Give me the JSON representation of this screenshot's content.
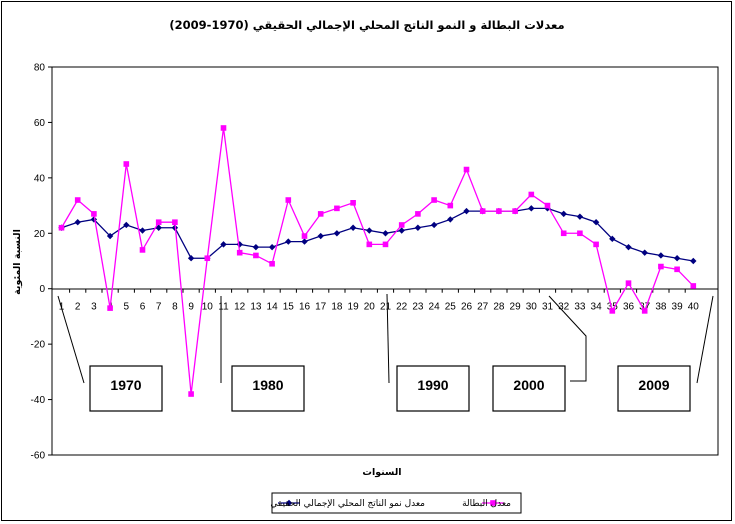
{
  "chart_data": {
    "type": "line",
    "title": "معدلات البطالة و النمو الناتج المحلي الإجمالي الحقيقي (1970-2009)",
    "xlabel": "السنوات",
    "ylabel": "النسبة المئوية",
    "ylim": [
      -60,
      80
    ],
    "yticks": [
      -60,
      -40,
      -20,
      0,
      20,
      40,
      60,
      80
    ],
    "grid": false,
    "legend": "bottom",
    "categories": [
      "1",
      "2",
      "3",
      "4",
      "5",
      "6",
      "7",
      "8",
      "9",
      "10",
      "11",
      "12",
      "13",
      "14",
      "15",
      "16",
      "17",
      "18",
      "19",
      "20",
      "21",
      "22",
      "23",
      "24",
      "25",
      "26",
      "27",
      "28",
      "29",
      "30",
      "31",
      "32",
      "33",
      "34",
      "35",
      "36",
      "37",
      "38",
      "39",
      "40"
    ],
    "series": [
      {
        "name": "معدل نمو الناتج المحلي الإجمالي الحقيقي",
        "color": "#000080",
        "marker": "diamond",
        "values": [
          22,
          24,
          25,
          19,
          23,
          21,
          22,
          22,
          11,
          11,
          16,
          16,
          15,
          15,
          17,
          17,
          19,
          20,
          22,
          21,
          20,
          21,
          22,
          23,
          25,
          28,
          28,
          28,
          28,
          29,
          29,
          27,
          26,
          24,
          18,
          15,
          13,
          12,
          11,
          10
        ]
      },
      {
        "name": "معدل البطالة",
        "color": "#ff00ff",
        "marker": "square",
        "values": [
          22,
          32,
          27,
          -7,
          45,
          14,
          24,
          24,
          -38,
          11,
          58,
          13,
          12,
          9,
          32,
          19,
          27,
          29,
          31,
          16,
          16,
          23,
          27,
          32,
          30,
          43,
          28,
          28,
          28,
          34,
          30,
          20,
          20,
          16,
          -8,
          2,
          -8,
          8,
          7,
          1
        ]
      }
    ],
    "annotations": [
      {
        "text": "1970",
        "points_to": 4
      },
      {
        "text": "1980",
        "points_to": 11
      },
      {
        "text": "1990",
        "points_to": 21
      },
      {
        "text": "2000",
        "points_to": 31
      },
      {
        "text": "2009",
        "points_to": 40
      }
    ]
  }
}
